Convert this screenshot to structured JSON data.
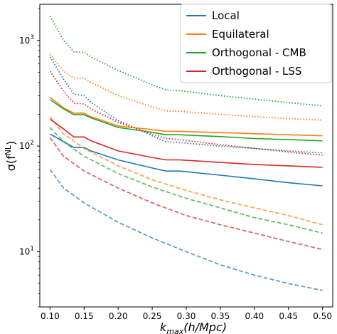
{
  "chart_data": {
    "type": "line",
    "xlabel_main": "k",
    "xlabel_sub": "max",
    "xlabel_rest": "(h/Mpc)",
    "ylabel_main": "σ(f",
    "ylabel_sup": "NL",
    "ylabel_end": ")",
    "xlim": [
      0.085,
      0.515
    ],
    "ylim": [
      3.0,
      2200
    ],
    "yscale": "log",
    "legend_position": "top-right",
    "x_ticks": [
      {
        "value": 0.1,
        "label": "0.10"
      },
      {
        "value": 0.15,
        "label": "0.15"
      },
      {
        "value": 0.2,
        "label": "0.20"
      },
      {
        "value": 0.25,
        "label": "0.25"
      },
      {
        "value": 0.3,
        "label": "0.30"
      },
      {
        "value": 0.35,
        "label": "0.35"
      },
      {
        "value": 0.4,
        "label": "0.40"
      },
      {
        "value": 0.45,
        "label": "0.45"
      },
      {
        "value": 0.5,
        "label": "0.50"
      }
    ],
    "y_ticks": [
      {
        "value": 10,
        "base": "10",
        "exp": "1"
      },
      {
        "value": 100,
        "base": "10",
        "exp": "2"
      },
      {
        "value": 1000,
        "base": "10",
        "exp": "3"
      }
    ],
    "legend": [
      {
        "name": "Local",
        "color": "#1f77b4"
      },
      {
        "name": "Equilateral",
        "color": "#ff7f0e"
      },
      {
        "name": "Orthogonal - CMB",
        "color": "#2ca02c"
      },
      {
        "name": "Orthogonal - LSS",
        "color": "#d62728"
      }
    ],
    "series": [
      {
        "shape": "Local",
        "style": "solid",
        "color": "#1f77b4",
        "opacity": 1,
        "x": [
          0.1,
          0.12,
          0.135,
          0.15,
          0.16,
          0.2,
          0.25,
          0.27,
          0.29,
          0.35,
          0.4,
          0.45,
          0.5
        ],
        "y": [
          130,
          110,
          97,
          97,
          90,
          74,
          62,
          58,
          58,
          53,
          49,
          45,
          42
        ]
      },
      {
        "shape": "Local",
        "style": "dashed",
        "color": "#1f77b4",
        "opacity": 0.7,
        "x": [
          0.1,
          0.12,
          0.15,
          0.2,
          0.25,
          0.3,
          0.35,
          0.4,
          0.45,
          0.5
        ],
        "y": [
          60,
          40,
          29,
          19,
          13.5,
          10,
          7.5,
          6,
          5,
          4.3
        ]
      },
      {
        "shape": "Local",
        "style": "dotted",
        "color": "#1f77b4",
        "opacity": 1,
        "x": [
          0.1,
          0.12,
          0.135,
          0.15,
          0.16,
          0.2,
          0.25,
          0.27,
          0.29,
          0.35,
          0.4,
          0.45,
          0.5
        ],
        "y": [
          700,
          430,
          310,
          300,
          260,
          175,
          125,
          110,
          108,
          100,
          95,
          90,
          86
        ]
      },
      {
        "shape": "Equilateral",
        "style": "solid",
        "color": "#ff7f0e",
        "opacity": 1,
        "x": [
          0.1,
          0.12,
          0.135,
          0.15,
          0.16,
          0.2,
          0.25,
          0.27,
          0.29,
          0.35,
          0.4,
          0.45,
          0.5
        ],
        "y": [
          290,
          230,
          205,
          205,
          190,
          155,
          143,
          138,
          138,
          134,
          131,
          128,
          125
        ]
      },
      {
        "shape": "Equilateral",
        "style": "dashed",
        "color": "#ff7f0e",
        "opacity": 0.7,
        "x": [
          0.1,
          0.12,
          0.15,
          0.2,
          0.25,
          0.3,
          0.35,
          0.4,
          0.45,
          0.5
        ],
        "y": [
          190,
          130,
          95,
          65,
          48,
          38,
          31,
          26,
          22,
          18
        ]
      },
      {
        "shape": "Equilateral",
        "style": "dotted",
        "color": "#ff7f0e",
        "opacity": 1,
        "x": [
          0.1,
          0.12,
          0.135,
          0.15,
          0.16,
          0.2,
          0.25,
          0.27,
          0.29,
          0.35,
          0.4,
          0.45,
          0.5
        ],
        "y": [
          740,
          510,
          440,
          440,
          400,
          300,
          235,
          215,
          213,
          200,
          190,
          182,
          176
        ]
      },
      {
        "shape": "Orthogonal - CMB",
        "style": "solid",
        "color": "#2ca02c",
        "opacity": 1,
        "x": [
          0.1,
          0.12,
          0.135,
          0.15,
          0.16,
          0.2,
          0.25,
          0.27,
          0.29,
          0.35,
          0.4,
          0.45,
          0.5
        ],
        "y": [
          275,
          225,
          198,
          198,
          185,
          150,
          135,
          128,
          128,
          123,
          118,
          115,
          112
        ]
      },
      {
        "shape": "Orthogonal - CMB",
        "style": "dashed",
        "color": "#2ca02c",
        "opacity": 0.7,
        "x": [
          0.1,
          0.12,
          0.15,
          0.2,
          0.25,
          0.3,
          0.35,
          0.4,
          0.45,
          0.5
        ],
        "y": [
          150,
          110,
          80,
          55,
          41,
          32,
          26,
          21,
          18,
          15
        ]
      },
      {
        "shape": "Orthogonal - CMB",
        "style": "dotted",
        "color": "#2ca02c",
        "opacity": 1,
        "x": [
          0.1,
          0.12,
          0.135,
          0.15,
          0.16,
          0.2,
          0.25,
          0.27,
          0.29,
          0.35,
          0.4,
          0.45,
          0.5
        ],
        "y": [
          1700,
          1000,
          780,
          770,
          700,
          520,
          380,
          340,
          335,
          300,
          278,
          258,
          240
        ]
      },
      {
        "shape": "Orthogonal - LSS",
        "style": "solid",
        "color": "#d62728",
        "opacity": 1,
        "x": [
          0.1,
          0.12,
          0.135,
          0.15,
          0.16,
          0.2,
          0.25,
          0.27,
          0.29,
          0.35,
          0.4,
          0.45,
          0.5
        ],
        "y": [
          180,
          145,
          122,
          122,
          112,
          90,
          78,
          74,
          74,
          70,
          67,
          65,
          63
        ]
      },
      {
        "shape": "Orthogonal - LSS",
        "style": "dashed",
        "color": "#d62728",
        "opacity": 0.7,
        "x": [
          0.1,
          0.12,
          0.15,
          0.2,
          0.25,
          0.3,
          0.35,
          0.4,
          0.45,
          0.5
        ],
        "y": [
          120,
          80,
          58,
          40,
          29,
          22,
          18,
          15,
          12.5,
          10.5
        ]
      },
      {
        "shape": "Orthogonal - LSS",
        "style": "dotted",
        "color": "#d62728",
        "opacity": 1,
        "x": [
          0.1,
          0.12,
          0.135,
          0.15,
          0.16,
          0.2,
          0.25,
          0.27,
          0.29,
          0.35,
          0.4,
          0.45,
          0.5
        ],
        "y": [
          510,
          330,
          255,
          250,
          225,
          168,
          130,
          118,
          115,
          103,
          95,
          88,
          82
        ]
      }
    ]
  }
}
